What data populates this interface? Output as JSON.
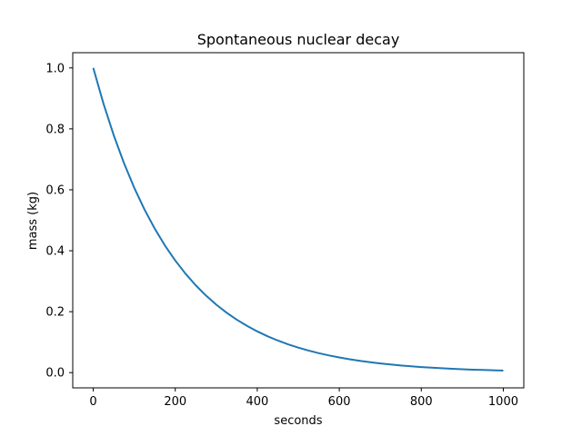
{
  "chart_data": {
    "type": "line",
    "title": "Spontaneous nuclear decay",
    "xlabel": "seconds",
    "ylabel": "mass (kg)",
    "xlim": [
      -50,
      1050
    ],
    "ylim": [
      -0.05,
      1.05
    ],
    "xticks": [
      0,
      200,
      400,
      600,
      800,
      1000
    ],
    "yticks": [
      0.0,
      0.2,
      0.4,
      0.6,
      0.8,
      1.0
    ],
    "xtick_labels": [
      "0",
      "200",
      "400",
      "600",
      "800",
      "1000"
    ],
    "ytick_labels": [
      "0.0",
      "0.2",
      "0.4",
      "0.6",
      "0.8",
      "1.0"
    ],
    "grid": false,
    "series": [
      {
        "color": "#1f77b4",
        "x": [
          0,
          25,
          50,
          75,
          100,
          125,
          150,
          175,
          200,
          225,
          250,
          275,
          300,
          325,
          350,
          375,
          400,
          425,
          450,
          475,
          500,
          525,
          550,
          575,
          600,
          625,
          650,
          675,
          700,
          725,
          750,
          775,
          800,
          825,
          850,
          875,
          900,
          925,
          950,
          975,
          1000
        ],
        "y": [
          1.0,
          0.8825,
          0.7788,
          0.6873,
          0.6065,
          0.5353,
          0.4724,
          0.4169,
          0.3679,
          0.3247,
          0.2865,
          0.2528,
          0.2231,
          0.1969,
          0.1738,
          0.1534,
          0.1353,
          0.1194,
          0.1054,
          0.093,
          0.0821,
          0.0724,
          0.0639,
          0.0564,
          0.0498,
          0.0439,
          0.0388,
          0.0342,
          0.0302,
          0.0266,
          0.0235,
          0.0208,
          0.0183,
          0.0162,
          0.0143,
          0.0126,
          0.0111,
          0.0098,
          0.0087,
          0.0076,
          0.0067
        ]
      }
    ]
  }
}
